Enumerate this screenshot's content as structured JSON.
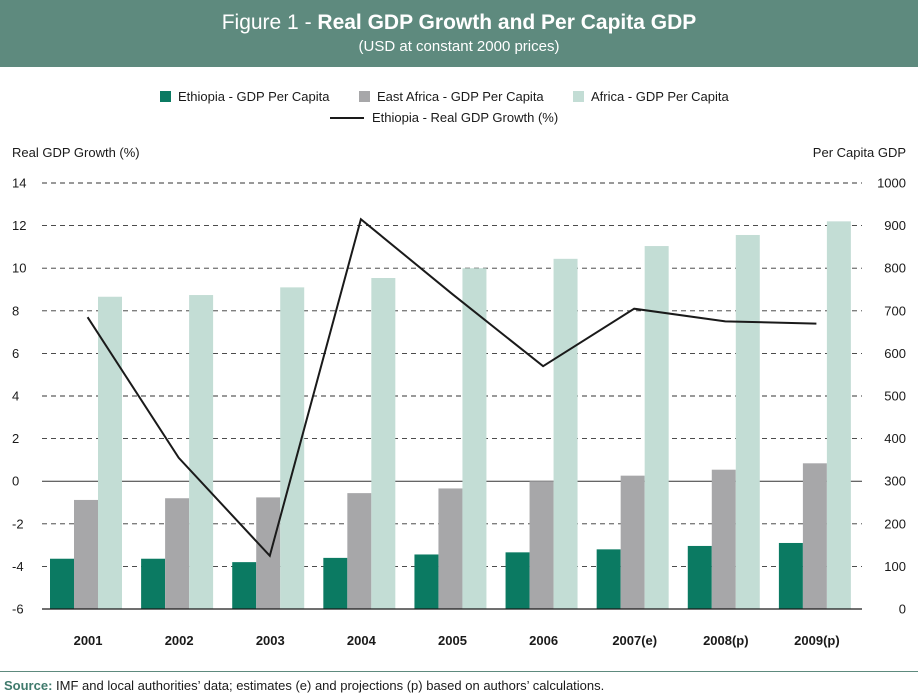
{
  "header": {
    "title_prefix": "Figure 1 - ",
    "title_bold": "Real GDP Growth and Per Capita GDP",
    "subtitle": "(USD at constant 2000 prices)"
  },
  "legend": {
    "ethiopia_pc": "Ethiopia - GDP Per Capita",
    "east_africa_pc": "East Africa - GDP Per Capita",
    "africa_pc": "Africa - GDP Per Capita",
    "ethiopia_growth": "Ethiopia - Real GDP Growth (%)"
  },
  "axis": {
    "left_title": "Real GDP Growth (%)",
    "right_title": "Per Capita GDP"
  },
  "source": {
    "label": "Source:",
    "text": "IMF and local authorities’ data; estimates (e) and projections (p) based on authors’ calculations."
  },
  "colors": {
    "header_bg": "#5e8a7e",
    "ethiopia": "#0b7a62",
    "east_africa": "#a7a7a9",
    "africa": "#c3ddd5",
    "line": "#1a1a1a"
  },
  "chart_data": {
    "type": "bar+line",
    "title": "Figure 1 - Real GDP Growth and Per Capita GDP",
    "subtitle": "(USD at constant 2000 prices)",
    "categories": [
      "2001",
      "2002",
      "2003",
      "2004",
      "2005",
      "2006",
      "2007(e)",
      "2008(p)",
      "2009(p)"
    ],
    "series": [
      {
        "name": "Ethiopia - GDP Per Capita",
        "type": "bar",
        "axis": "right",
        "values": [
          118,
          118,
          110,
          120,
          128,
          133,
          140,
          148,
          155
        ]
      },
      {
        "name": "East Africa - GDP Per Capita",
        "type": "bar",
        "axis": "right",
        "values": [
          256,
          260,
          262,
          272,
          283,
          300,
          313,
          327,
          342
        ]
      },
      {
        "name": "Africa - GDP Per Capita",
        "type": "bar",
        "axis": "right",
        "values": [
          733,
          737,
          755,
          777,
          800,
          822,
          852,
          878,
          910
        ]
      },
      {
        "name": "Ethiopia - Real GDP Growth (%)",
        "type": "line",
        "axis": "left",
        "values": [
          7.7,
          1.1,
          -3.5,
          12.3,
          8.8,
          5.4,
          8.1,
          7.5,
          7.4
        ]
      }
    ],
    "ylabel_left": "Real GDP Growth (%)",
    "ylim_left": [
      -6,
      14
    ],
    "yticks_left": [
      "14",
      "12",
      "10",
      "8",
      "6",
      "4",
      "2",
      "0",
      "-2",
      "-4",
      "-6"
    ],
    "ylabel_right": "Per Capita GDP",
    "ylim_right": [
      0,
      1000
    ],
    "yticks_right": [
      "1000",
      "900",
      "800",
      "700",
      "600",
      "500",
      "400",
      "300",
      "200",
      "100",
      "0"
    ],
    "grid": "horizontal dashed",
    "legend_position": "top"
  }
}
